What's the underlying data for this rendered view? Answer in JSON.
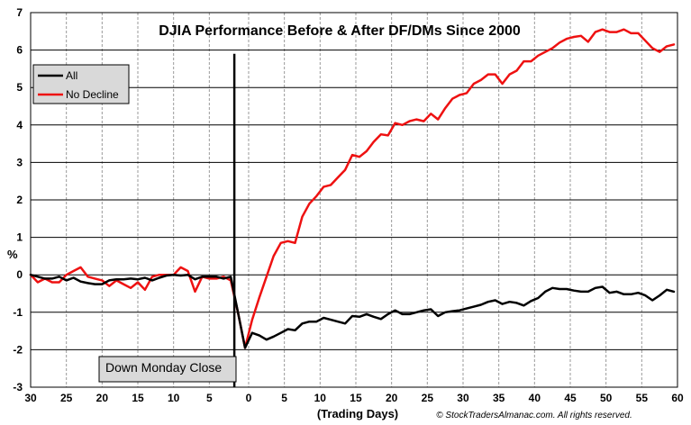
{
  "chart_data": {
    "type": "line",
    "title": "DJIA Performance Before & After DF/DMs Since 2000",
    "xlabel": "(Trading Days)",
    "ylabel": "%",
    "credit": "© StockTradersAlmanac.com. All rights reserved.",
    "event_label": "Down Monday  Close",
    "ylim": [
      -3,
      7
    ],
    "yticks": [
      -3,
      -2,
      -1,
      0,
      1,
      2,
      3,
      4,
      5,
      6,
      7
    ],
    "xticks": [
      {
        "label": "30",
        "x": -30
      },
      {
        "label": "25",
        "x": -25
      },
      {
        "label": "20",
        "x": -20
      },
      {
        "label": "15",
        "x": -15
      },
      {
        "label": "10",
        "x": -10
      },
      {
        "label": "5",
        "x": -5
      },
      {
        "label": "0",
        "x": 0.5
      },
      {
        "label": "5",
        "x": 5.5
      },
      {
        "label": "10",
        "x": 10.5
      },
      {
        "label": "15",
        "x": 15.5
      },
      {
        "label": "20",
        "x": 20.5
      },
      {
        "label": "25",
        "x": 25.5
      },
      {
        "label": "30",
        "x": 30.5
      },
      {
        "label": "35",
        "x": 35.5
      },
      {
        "label": "40",
        "x": 40.5
      },
      {
        "label": "45",
        "x": 45.5
      },
      {
        "label": "50",
        "x": 50.5
      },
      {
        "label": "55",
        "x": 55.5
      },
      {
        "label": "60",
        "x": 60.5
      }
    ],
    "xlim": [
      -30,
      60.5
    ],
    "event_x": -1.5,
    "legend": [
      "All",
      "No Decline"
    ],
    "series": [
      {
        "name": "All",
        "color": "#000000",
        "x": [
          -30,
          -29,
          -28,
          -27,
          -26,
          -25,
          -24,
          -23,
          -22,
          -21,
          -20,
          -19,
          -18,
          -17,
          -16,
          -15,
          -14,
          -13,
          -12,
          -11,
          -10,
          -9,
          -8,
          -7,
          -6,
          -5,
          -4,
          -3,
          -2,
          -1,
          0,
          1,
          2,
          3,
          4,
          5,
          6,
          7,
          8,
          9,
          10,
          11,
          12,
          13,
          14,
          15,
          16,
          17,
          18,
          19,
          20,
          21,
          22,
          23,
          24,
          25,
          26,
          27,
          28,
          29,
          30,
          31,
          32,
          33,
          34,
          35,
          36,
          37,
          38,
          39,
          40,
          41,
          42,
          43,
          44,
          45,
          46,
          47,
          48,
          49,
          50,
          51,
          52,
          53,
          54,
          55,
          56,
          57,
          58,
          59,
          60
        ],
        "values": [
          0,
          -0.05,
          -0.1,
          -0.1,
          -0.05,
          -0.15,
          -0.08,
          -0.18,
          -0.22,
          -0.25,
          -0.25,
          -0.15,
          -0.12,
          -0.12,
          -0.1,
          -0.12,
          -0.08,
          -0.15,
          -0.08,
          -0.02,
          0,
          -0.02,
          0,
          -0.12,
          -0.05,
          -0.05,
          -0.05,
          -0.1,
          -0.05,
          -1.0,
          -1.95,
          -1.55,
          -1.62,
          -1.73,
          -1.65,
          -1.55,
          -1.45,
          -1.48,
          -1.3,
          -1.25,
          -1.25,
          -1.15,
          -1.2,
          -1.25,
          -1.3,
          -1.1,
          -1.12,
          -1.05,
          -1.12,
          -1.18,
          -1.05,
          -0.95,
          -1.05,
          -1.05,
          -1.0,
          -0.95,
          -0.92,
          -1.1,
          -1.0,
          -0.97,
          -0.95,
          -0.9,
          -0.85,
          -0.8,
          -0.72,
          -0.68,
          -0.78,
          -0.72,
          -0.75,
          -0.82,
          -0.7,
          -0.62,
          -0.45,
          -0.35,
          -0.38,
          -0.38,
          -0.42,
          -0.45,
          -0.45,
          -0.35,
          -0.32,
          -0.48,
          -0.45,
          -0.52,
          -0.52,
          -0.48,
          -0.55,
          -0.68,
          -0.55,
          -0.4,
          -0.45
        ]
      },
      {
        "name": "No Decline",
        "color": "#ee1111",
        "x": [
          -30,
          -29,
          -28,
          -27,
          -26,
          -25,
          -24,
          -23,
          -22,
          -21,
          -20,
          -19,
          -18,
          -17,
          -16,
          -15,
          -14,
          -13,
          -12,
          -11,
          -10,
          -9,
          -8,
          -7,
          -6,
          -5,
          -4,
          -3,
          -2,
          -1,
          0,
          1,
          2,
          3,
          4,
          5,
          6,
          7,
          8,
          9,
          10,
          11,
          12,
          13,
          14,
          15,
          16,
          17,
          18,
          19,
          20,
          21,
          22,
          23,
          24,
          25,
          26,
          27,
          28,
          29,
          30,
          31,
          32,
          33,
          34,
          35,
          36,
          37,
          38,
          39,
          40,
          41,
          42,
          43,
          44,
          45,
          46,
          47,
          48,
          49,
          50,
          51,
          52,
          53,
          54,
          55,
          56,
          57,
          58,
          59,
          60
        ],
        "values": [
          0,
          -0.2,
          -0.1,
          -0.2,
          -0.2,
          0,
          0.1,
          0.2,
          -0.05,
          -0.1,
          -0.15,
          -0.3,
          -0.15,
          -0.25,
          -0.35,
          -0.2,
          -0.4,
          -0.05,
          0,
          0,
          0,
          0.2,
          0.1,
          -0.45,
          -0.05,
          -0.1,
          -0.1,
          -0.05,
          -0.15,
          -1.0,
          -1.95,
          -1.2,
          -0.6,
          -0.05,
          0.5,
          0.85,
          0.9,
          0.85,
          1.55,
          1.9,
          2.1,
          2.35,
          2.4,
          2.6,
          2.8,
          3.2,
          3.15,
          3.3,
          3.55,
          3.75,
          3.72,
          4.05,
          4.0,
          4.1,
          4.15,
          4.1,
          4.3,
          4.15,
          4.45,
          4.7,
          4.8,
          4.85,
          5.1,
          5.2,
          5.35,
          5.35,
          5.1,
          5.35,
          5.45,
          5.7,
          5.7,
          5.85,
          5.95,
          6.05,
          6.2,
          6.3,
          6.35,
          6.38,
          6.22,
          6.48,
          6.55,
          6.48,
          6.48,
          6.55,
          6.45,
          6.45,
          6.25,
          6.05,
          5.95,
          6.1,
          6.15
        ]
      }
    ]
  }
}
